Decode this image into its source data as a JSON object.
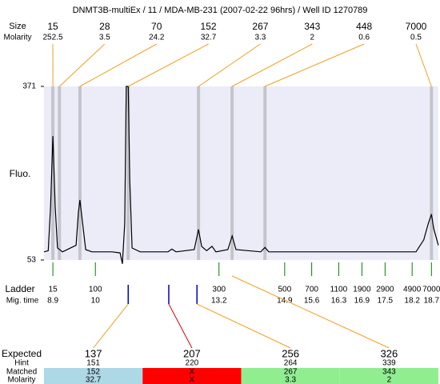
{
  "chart_data": {
    "type": "electropherogram",
    "title": "DNMT3B-multiEx / 11 / MDA-MB-231 (2007-02-22 96hrs) / Well ID 1270789",
    "size_label": "Size",
    "molarity_label": "Molarity",
    "ylabel": "Fluo.",
    "ylim": [
      53,
      371
    ],
    "yticks": [
      53,
      371
    ],
    "xlim": [
      8.67,
      18.88
    ],
    "background": "#ececf8",
    "trace": {
      "color": "#000000",
      "x": [
        8.67,
        8.78,
        8.84,
        8.9,
        8.96,
        9.02,
        9.15,
        9.5,
        9.56,
        9.6,
        9.67,
        9.75,
        9.91,
        10.43,
        10.64,
        10.7,
        10.76,
        10.8,
        10.85,
        10.89,
        10.95,
        11.16,
        11.88,
        11.98,
        12.09,
        12.56,
        12.67,
        12.75,
        12.88,
        13.02,
        13.12,
        13.43,
        13.54,
        13.64,
        14.28,
        14.39,
        14.49,
        18.3,
        18.5,
        18.62,
        18.7,
        18.76,
        18.88
      ],
      "values": [
        68,
        70,
        150,
        280,
        150,
        75,
        68,
        80,
        140,
        163,
        120,
        72,
        68,
        68,
        66,
        46,
        120,
        371,
        371,
        200,
        75,
        68,
        68,
        73,
        68,
        72,
        109,
        78,
        70,
        78,
        68,
        72,
        97,
        72,
        68,
        76,
        68,
        68,
        90,
        120,
        137,
        110,
        80
      ]
    },
    "peaks": {
      "color": "#f0a020",
      "band_color": "#c4c4cc",
      "sizes": [
        15,
        28,
        70,
        152,
        267,
        343,
        448,
        7000
      ],
      "molarities": [
        252.5,
        3.5,
        24.2,
        32.7,
        3.3,
        2,
        0.6,
        0.5
      ],
      "times": [
        8.9,
        9.07,
        9.6,
        10.85,
        12.67,
        13.54,
        14.39,
        18.7
      ]
    },
    "ladder": {
      "label": "Ladder",
      "time_label": "Mig. time",
      "color": "#008000",
      "sizes": [
        15,
        100,
        300,
        500,
        700,
        1100,
        1900,
        2900,
        4900,
        7000
      ],
      "times": [
        8.9,
        10,
        13.2,
        14.9,
        15.6,
        16.3,
        16.9,
        17.5,
        18.2,
        18.7
      ]
    },
    "expected": {
      "labels": [
        "Expected",
        "Hint",
        "Matched",
        "Molarity"
      ],
      "values": [
        137,
        207,
        256,
        326
      ],
      "colors": [
        "#e00000",
        "#000000",
        "#000000",
        "#e00000"
      ],
      "hint": [
        151,
        220,
        264,
        339
      ],
      "matched": [
        152,
        "X",
        267,
        343
      ],
      "molarity": [
        32.7,
        "X",
        3.3,
        2
      ],
      "fills": [
        "#add8e6",
        "#ff0000",
        "#90ee90",
        "#90ee90"
      ],
      "marker_color": "#0000cc",
      "marked": [
        true,
        true,
        true,
        false
      ],
      "link_times": [
        10.85,
        11.9,
        12.63,
        13.54
      ],
      "link_colors": [
        "#f0a020",
        "#e00000",
        "#f0a020",
        "#f0a020"
      ]
    }
  }
}
